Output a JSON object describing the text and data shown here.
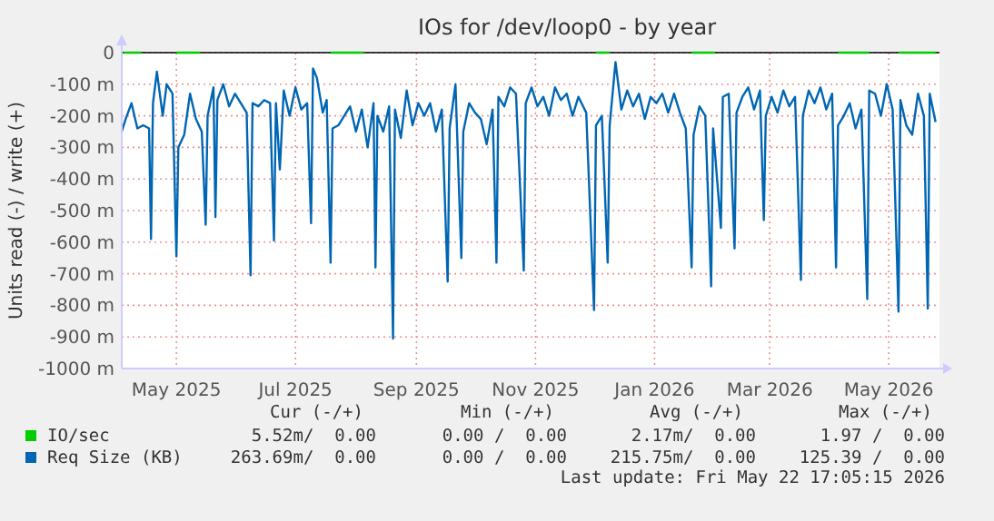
{
  "chart_data": {
    "type": "line",
    "title": "IOs for /dev/loop0 - by year",
    "ylabel": "Units read (-) / write (+)",
    "xlim": [
      "2025-04-03",
      "2026-05-27"
    ],
    "xticks": [
      {
        "value": "2025-05-01",
        "label": "May 2025"
      },
      {
        "value": "2025-07-01",
        "label": "Jul 2025"
      },
      {
        "value": "2025-09-01",
        "label": "Sep 2025"
      },
      {
        "value": "2025-11-01",
        "label": "Nov 2025"
      },
      {
        "value": "2026-01-01",
        "label": "Jan 2026"
      },
      {
        "value": "2026-03-01",
        "label": "Mar 2026"
      },
      {
        "value": "2026-05-01",
        "label": "May 2026"
      }
    ],
    "ylim": [
      -1000,
      0
    ],
    "yticks": [
      0,
      {
        "value": -100,
        "label": "-100 m"
      },
      {
        "value": -200,
        "label": "-200 m"
      },
      {
        "value": -300,
        "label": "-300 m"
      },
      {
        "value": -400,
        "label": "-400 m"
      },
      {
        "value": -500,
        "label": "-500 m"
      },
      {
        "value": -600,
        "label": "-600 m"
      },
      {
        "value": -700,
        "label": "-700 m"
      },
      {
        "value": -800,
        "label": "-800 m"
      },
      {
        "value": -900,
        "label": "-900 m"
      },
      {
        "value": -1000,
        "label": "-1000 m"
      }
    ],
    "grid": true,
    "legend": "bottom",
    "series": [
      {
        "name": "IO/sec",
        "color": "#00cc00",
        "x": [
          "2025-04-04",
          "2025-04-13",
          "2025-04-14",
          "2025-05-01",
          "2025-05-13",
          "2025-05-14",
          "2025-07-19",
          "2025-08-05",
          "2025-08-06",
          "2025-12-02",
          "2025-12-09",
          "2025-12-10",
          "2026-01-20",
          "2026-02-01",
          "2026-02-02",
          "2026-04-05",
          "2026-04-21",
          "2026-04-22",
          "2026-05-06",
          "2026-05-25"
        ],
        "values": [
          0,
          0,
          null,
          0,
          0,
          null,
          0,
          0,
          null,
          0,
          0,
          null,
          0,
          0,
          null,
          0,
          0,
          null,
          0,
          0
        ]
      },
      {
        "name": "Req Size (KB)",
        "color": "#0066b3",
        "x": [
          "2025-04-03",
          "2025-04-05",
          "2025-04-08",
          "2025-04-11",
          "2025-04-14",
          "2025-04-17",
          "2025-04-18",
          "2025-04-19",
          "2025-04-21",
          "2025-04-24",
          "2025-04-26",
          "2025-04-29",
          "2025-05-01",
          "2025-05-02",
          "2025-05-05",
          "2025-05-08",
          "2025-05-11",
          "2025-05-14",
          "2025-05-16",
          "2025-05-17",
          "2025-05-20",
          "2025-05-21",
          "2025-05-22",
          "2025-05-25",
          "2025-05-28",
          "2025-05-31",
          "2025-06-03",
          "2025-06-06",
          "2025-06-08",
          "2025-06-09",
          "2025-06-12",
          "2025-06-15",
          "2025-06-18",
          "2025-06-20",
          "2025-06-21",
          "2025-06-23",
          "2025-06-25",
          "2025-06-28",
          "2025-07-01",
          "2025-07-04",
          "2025-07-07",
          "2025-07-09",
          "2025-07-10",
          "2025-07-12",
          "2025-07-15",
          "2025-07-17",
          "2025-07-19",
          "2025-07-20",
          "2025-07-23",
          "2025-07-26",
          "2025-07-29",
          "2025-08-01",
          "2025-08-04",
          "2025-08-07",
          "2025-08-10",
          "2025-08-11",
          "2025-08-12",
          "2025-08-15",
          "2025-08-18",
          "2025-08-20",
          "2025-08-21",
          "2025-08-24",
          "2025-08-27",
          "2025-08-30",
          "2025-09-02",
          "2025-09-05",
          "2025-09-08",
          "2025-09-11",
          "2025-09-14",
          "2025-09-17",
          "2025-09-18",
          "2025-09-21",
          "2025-09-24",
          "2025-09-25",
          "2025-09-28",
          "2025-10-01",
          "2025-10-04",
          "2025-10-07",
          "2025-10-10",
          "2025-10-12",
          "2025-10-13",
          "2025-10-16",
          "2025-10-19",
          "2025-10-22",
          "2025-10-26",
          "2025-10-27",
          "2025-10-30",
          "2025-11-02",
          "2025-11-05",
          "2025-11-08",
          "2025-11-11",
          "2025-11-14",
          "2025-11-17",
          "2025-11-20",
          "2025-11-23",
          "2025-11-27",
          "2025-12-01",
          "2025-12-02",
          "2025-12-05",
          "2025-12-08",
          "2025-12-09",
          "2025-12-12",
          "2025-12-15",
          "2025-12-18",
          "2025-12-21",
          "2025-12-24",
          "2025-12-27",
          "2025-12-30",
          "2026-01-02",
          "2026-01-05",
          "2026-01-08",
          "2026-01-11",
          "2026-01-14",
          "2026-01-17",
          "2026-01-20",
          "2026-01-21",
          "2026-01-24",
          "2026-01-27",
          "2026-01-30",
          "2026-01-31",
          "2026-02-04",
          "2026-02-05",
          "2026-02-08",
          "2026-02-11",
          "2026-02-12",
          "2026-02-15",
          "2026-02-18",
          "2026-02-21",
          "2026-02-24",
          "2026-02-26",
          "2026-02-27",
          "2026-03-02",
          "2026-03-05",
          "2026-03-08",
          "2026-03-11",
          "2026-03-14",
          "2026-03-17",
          "2026-03-18",
          "2026-03-21",
          "2026-03-24",
          "2026-03-27",
          "2026-03-30",
          "2026-04-02",
          "2026-04-04",
          "2026-04-05",
          "2026-04-08",
          "2026-04-11",
          "2026-04-14",
          "2026-04-17",
          "2026-04-20",
          "2026-04-21",
          "2026-04-24",
          "2026-04-27",
          "2026-04-30",
          "2026-05-03",
          "2026-05-06",
          "2026-05-07",
          "2026-05-10",
          "2026-05-13",
          "2026-05-16",
          "2026-05-19",
          "2026-05-21",
          "2026-05-22",
          "2026-05-25"
        ],
        "values": [
          -250,
          -210,
          -160,
          -240,
          -230,
          -240,
          -590,
          -160,
          -60,
          -200,
          -100,
          -130,
          -645,
          -300,
          -260,
          -130,
          -210,
          -250,
          -545,
          -200,
          -110,
          -520,
          -150,
          -100,
          -170,
          -130,
          -160,
          -190,
          -705,
          -160,
          -170,
          -150,
          -160,
          -595,
          -160,
          -370,
          -120,
          -200,
          -110,
          -180,
          -160,
          -540,
          -50,
          -80,
          -190,
          -150,
          -665,
          -240,
          -230,
          -200,
          -170,
          -250,
          -180,
          -300,
          -160,
          -680,
          -200,
          -250,
          -170,
          -905,
          -180,
          -270,
          -120,
          -230,
          -160,
          -200,
          -160,
          -250,
          -180,
          -725,
          -240,
          -100,
          -650,
          -250,
          -160,
          -190,
          -210,
          -290,
          -180,
          -665,
          -140,
          -170,
          -110,
          -130,
          -690,
          -160,
          -110,
          -170,
          -140,
          -200,
          -110,
          -150,
          -130,
          -200,
          -140,
          -190,
          -815,
          -230,
          -200,
          -665,
          -230,
          -30,
          -180,
          -120,
          -170,
          -130,
          -210,
          -140,
          -160,
          -130,
          -190,
          -130,
          -190,
          -240,
          -680,
          -260,
          -170,
          -200,
          -740,
          -240,
          -555,
          -140,
          -130,
          -620,
          -190,
          -140,
          -110,
          -180,
          -120,
          -530,
          -200,
          -140,
          -190,
          -120,
          -170,
          -140,
          -720,
          -200,
          -120,
          -160,
          -110,
          -180,
          -130,
          -680,
          -230,
          -200,
          -160,
          -240,
          -180,
          -780,
          -120,
          -130,
          -200,
          -100,
          -180,
          -820,
          -150,
          -230,
          -260,
          -130,
          -200,
          -810,
          -130,
          -220
        ]
      }
    ],
    "annotations": [
      "Cur (-/+)",
      "Min (-/+)",
      "Avg (-/+)",
      "Max (-/+)",
      "5.52m/  0.00",
      "0.00 /  0.00",
      "2.17m/  0.00",
      "1.97 /  0.00",
      "263.69m/  0.00",
      "0.00 /  0.00",
      "215.75m/  0.00",
      "125.39 /  0.00",
      "Last update: Fri May 22 17:05:15 2026"
    ]
  }
}
